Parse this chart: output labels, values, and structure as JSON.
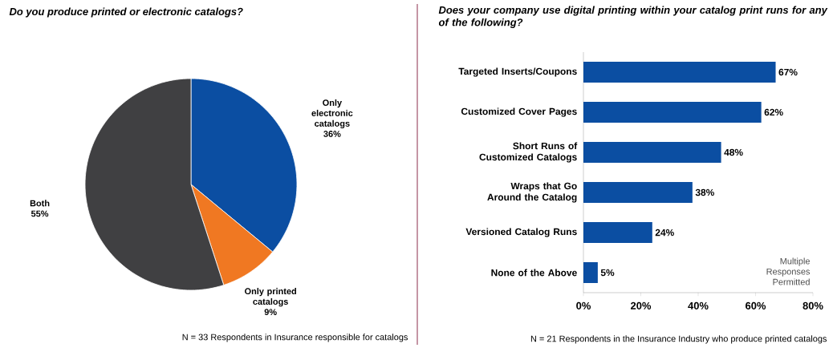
{
  "chart_data": [
    {
      "type": "pie",
      "title": "Do you produce printed or electronic catalogs?",
      "categories": [
        "Only electronic catalogs",
        "Only printed catalogs",
        "Both"
      ],
      "values": [
        36,
        9,
        55
      ],
      "value_labels": [
        "36%",
        "9%",
        "55%"
      ],
      "colors": [
        "#0b4ea2",
        "#f07822",
        "#404042"
      ],
      "annotations": [
        "N = 33 Respondents in Insurance responsible for catalogs"
      ]
    },
    {
      "type": "bar",
      "orientation": "horizontal",
      "title": "Does your company use digital printing within your catalog print runs for any of the following?",
      "categories": [
        "Targeted Inserts/Coupons",
        "Customized Cover Pages",
        "Short Runs of Customized Catalogs",
        "Wraps that Go Around the Catalog",
        "Versioned Catalog Runs",
        "None of the Above"
      ],
      "values": [
        67,
        62,
        48,
        38,
        24,
        5
      ],
      "value_labels": [
        "67%",
        "62%",
        "48%",
        "38%",
        "24%",
        "5%"
      ],
      "color": "#0b4ea2",
      "xlim": [
        0,
        80
      ],
      "xticks": [
        {
          "value": 0,
          "label": "0%"
        },
        {
          "value": 20,
          "label": "20%"
        },
        {
          "value": 40,
          "label": "40%"
        },
        {
          "value": 60,
          "label": "60%"
        },
        {
          "value": 80,
          "label": "80%"
        }
      ],
      "annotations": [
        "N = 21 Respondents in the Insurance Industry who produce printed catalogs",
        "Multiple Responses Permitted"
      ]
    }
  ]
}
